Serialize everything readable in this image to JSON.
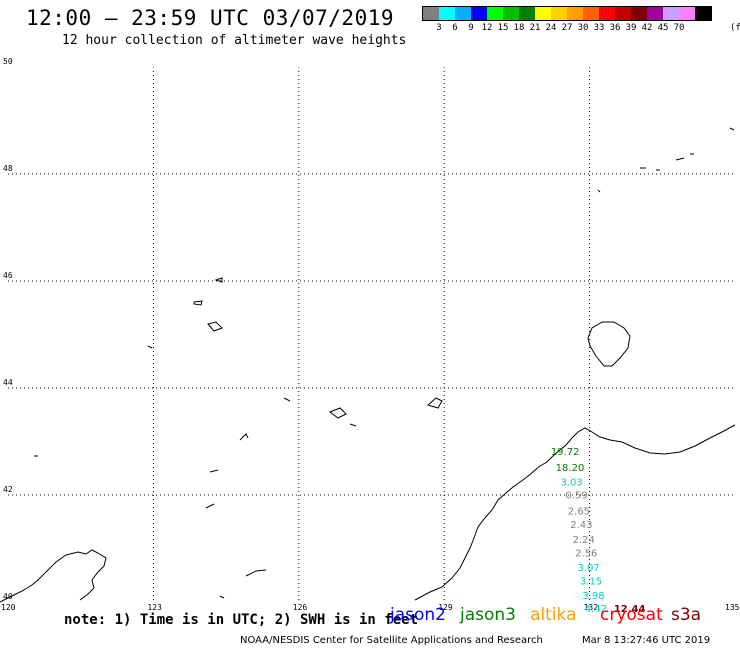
{
  "header": {
    "title": "12:00 – 23:59 UTC 03/07/2019",
    "subtitle": "12 hour collection of altimeter wave heights"
  },
  "legend": {
    "colors": [
      "#808080",
      "#00ffff",
      "#00b0ff",
      "#0000ff",
      "#00ff00",
      "#00c000",
      "#008000",
      "#ffff00",
      "#ffd000",
      "#ffa000",
      "#ff6000",
      "#ff0000",
      "#c00000",
      "#800000",
      "#a000a0",
      "#c8a0ff",
      "#ff80ff",
      "#000000"
    ],
    "labels": [
      "3",
      "6",
      "9",
      "12",
      "15",
      "18",
      "21",
      "24",
      "27",
      "30",
      "33",
      "36",
      "39",
      "42",
      "45",
      "70"
    ],
    "unit": "(ft)"
  },
  "map": {
    "lon_ticks": [
      "120",
      "123",
      "126",
      "129",
      "132",
      "135"
    ],
    "lat_ticks": [
      "50",
      "48",
      "46",
      "44",
      "42",
      "40"
    ],
    "extent": {
      "lon": [
        120,
        135
      ],
      "lat": [
        40,
        50
      ]
    },
    "grid": "dotted"
  },
  "observations": [
    {
      "value": "19.72",
      "lon": 131.2,
      "lat": 42.75,
      "color": "#008000"
    },
    {
      "value": "18.20",
      "lon": 131.3,
      "lat": 42.45,
      "color": "#008000"
    },
    {
      "value": "3.03",
      "lon": 131.4,
      "lat": 42.18,
      "color": "#00cccc"
    },
    {
      "value": "0.59",
      "lon": 131.5,
      "lat": 41.93,
      "color": "#808080"
    },
    {
      "value": "2.65",
      "lon": 131.55,
      "lat": 41.64,
      "color": "#808080"
    },
    {
      "value": "2.43",
      "lon": 131.6,
      "lat": 41.38,
      "color": "#808080"
    },
    {
      "value": "2.24",
      "lon": 131.65,
      "lat": 41.1,
      "color": "#808080"
    },
    {
      "value": "2.56",
      "lon": 131.7,
      "lat": 40.85,
      "color": "#808080"
    },
    {
      "value": "3.07",
      "lon": 131.75,
      "lat": 40.58,
      "color": "#00cccc"
    },
    {
      "value": "3.15",
      "lon": 131.8,
      "lat": 40.33,
      "color": "#00cccc"
    },
    {
      "value": "3.98",
      "lon": 131.85,
      "lat": 40.06,
      "color": "#00cccc"
    },
    {
      "value": "4.42",
      "lon": 131.9,
      "lat": 39.81,
      "color": "#00cccc"
    },
    {
      "value": "12.44",
      "lon": 132.5,
      "lat": 39.81,
      "color": "#800000"
    }
  ],
  "footer": {
    "note": "note: 1) Time is in UTC; 2) SWH is in feet",
    "satellites": [
      {
        "name": "jason2",
        "color": "#0000ff"
      },
      {
        "name": "jason3",
        "color": "#008000"
      },
      {
        "name": "altika",
        "color": "#ffa000"
      },
      {
        "name": "cryosat",
        "color": "#ff0000"
      },
      {
        "name": "s3a",
        "color": "#800000"
      }
    ],
    "credit": "NOAA/NESDIS Center for Satellite Applications and Research",
    "timestamp": "Mar  8 13:27:46 UTC 2019"
  }
}
